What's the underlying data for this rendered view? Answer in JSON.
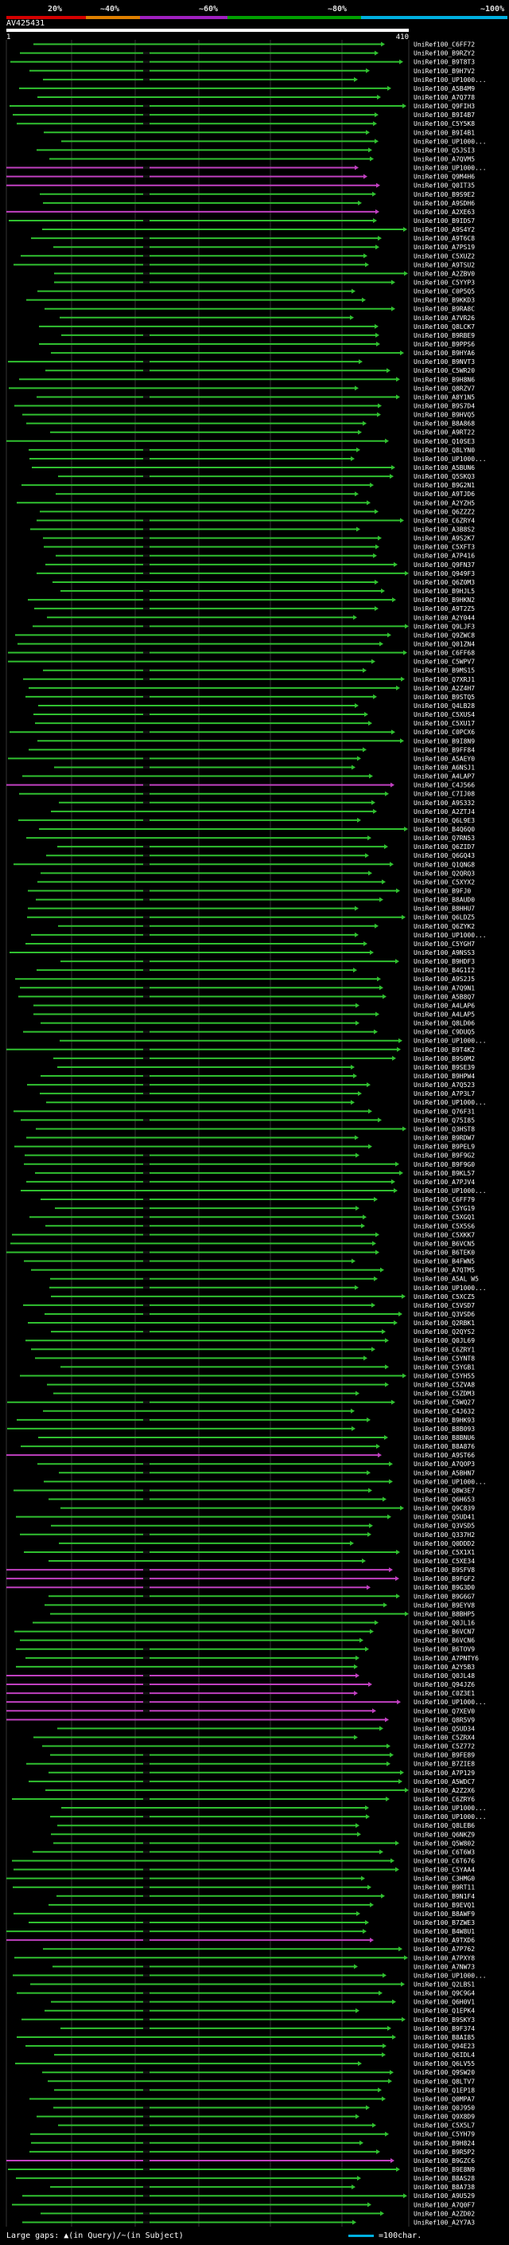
{
  "scale": {
    "labels": [
      "20%",
      "~40%",
      "~60%",
      "~80%",
      "~100%"
    ],
    "colors": [
      "#d40000",
      "#e08000",
      "#a020c0",
      "#00a000",
      "#00b0e0"
    ]
  },
  "query": {
    "id": "AV425431",
    "start": "1",
    "end": "410"
  },
  "hits": [
    "UniRef100_C6FF72",
    "UniRef100_B9RZY2",
    "UniRef100_B9T8T3",
    "UniRef100_B9H7V2",
    "UniRef100_UP1000...",
    "UniRef100_A5B4M9",
    "UniRef100_A7Q778",
    "UniRef100_Q9FIH3",
    "UniRef100_B9I4B7",
    "UniRef100_C5Y5K8",
    "UniRef100_B9I4B1",
    "UniRef100_UP1000...",
    "UniRef100_Q5JSI3",
    "UniRef100_A7QVM5",
    "UniRef100_UP1000...",
    "UniRef100_Q9M4H6",
    "UniRef100_Q0IT35",
    "UniRef100_B9S9E2",
    "UniRef100_A9SDH6",
    "UniRef100_A2XE63",
    "UniRef100_B9IDS7",
    "UniRef100_A9S4Y2",
    "UniRef100_A9T6C8",
    "UniRef100_A7PS19",
    "UniRef100_C5XUZ2",
    "UniRef100_A9TSU2",
    "UniRef100_A2ZBV0",
    "UniRef100_C5YYP3",
    "UniRef100_C0P5Q5",
    "UniRef100_B9KKD3",
    "UniRef100_B9RA8C",
    "UniRef100_A7VR26",
    "UniRef100_Q8LCK7",
    "UniRef100_B9RBE9",
    "UniRef100_B9PPS6",
    "UniRef100_B9HYA6",
    "UniRef100_B9NVT3",
    "UniRef100_C5WR20",
    "UniRef100_B9H8N6",
    "UniRef100_Q8RZV7",
    "UniRef100_A8Y1N5",
    "UniRef100_B9S7D4",
    "UniRef100_B9HVQ5",
    "UniRef100_B8A868",
    "UniRef100_A9RT22",
    "UniRef100_Q10SE3",
    "UniRef100_Q8LYN0",
    "UniRef100_UP1000...",
    "UniRef100_A5BUN6",
    "UniRef100_Q5SKQ3",
    "UniRef100_B9G2N1",
    "UniRef100_A9TJD6",
    "UniRef100_A2YZH5",
    "UniRef100_Q6ZZZ2",
    "UniRef100_C6ZRY4",
    "UniRef100_A3B8S2",
    "UniRef100_A9S2K7",
    "UniRef100_C5XFT3",
    "UniRef100_A7P416",
    "UniRef100_Q9FN37",
    "UniRef100_Q949F3",
    "UniRef100_Q6Z0M3",
    "UniRef100_B9HJL5",
    "UniRef100_B9HKN2",
    "UniRef100_A9T2Z5",
    "UniRef100_A2Y044",
    "UniRef100_Q9LJF3",
    "UniRef100_Q9ZWC8",
    "UniRef100_Q01ZN4",
    "UniRef100_C6FF68",
    "UniRef100_C5WPV7",
    "UniRef100_B9MS15",
    "UniRef100_Q7XRJ1",
    "UniRef100_A2Z4H7",
    "UniRef100_B9STQ5",
    "UniRef100_Q4LB28",
    "UniRef100_C5XUS4",
    "UniRef100_C5XU17",
    "UniRef100_C0PCX6",
    "UniRef100_B9I8N9",
    "UniRef100_B9FF84",
    "UniRef100_A5AEY0",
    "UniRef100_A6NSJ1",
    "UniRef100_A4LAP7",
    "UniRef100_C4J566",
    "UniRef100_C7IJ08",
    "UniRef100_A9S332",
    "UniRef100_A2ZTJ4",
    "UniRef100_Q6L9E3",
    "UniRef100_B4Q6Q0",
    "UniRef100_Q7RN53",
    "UniRef100_Q6ZID7",
    "UniRef100_Q6GQ43",
    "UniRef100_Q1QNG8",
    "UniRef100_Q2QRQ3",
    "UniRef100_C5XYX2",
    "UniRef100_B9FJ0",
    "UniRef100_B8AUD0",
    "UniRef100_B8HHU7",
    "UniRef100_Q6LDZ5",
    "UniRef100_Q6ZYK2",
    "UniRef100_UP1000...",
    "UniRef100_C5YGH7",
    "UniRef100_A9NSS3",
    "UniRef100_B9HDF3",
    "UniRef100_B4G1I2",
    "UniRef100_A9S2J5",
    "UniRef100_A7Q9N1",
    "UniRef100_A5B8Q7",
    "UniRef100_A4LAP6",
    "UniRef100_A4LAP5",
    "UniRef100_Q8LD06",
    "UniRef100_C9DUQ5",
    "UniRef100_UP1000...",
    "UniRef100_B9T4K2",
    "UniRef100_B9S0M2",
    "UniRef100_B9SE39",
    "UniRef100_B9HPW4",
    "UniRef100_A7Q523",
    "UniRef100_A7P3L7",
    "UniRef100_UP1000...",
    "UniRef100_Q76F31",
    "UniRef100_Q75I85",
    "UniRef100_Q3HST8",
    "UniRef100_B9RDW7",
    "UniRef100_B9PEL9",
    "UniRef100_B9F9G2",
    "UniRef100_B9F9G0",
    "UniRef100_B9KL57",
    "UniRef100_A7PJV4",
    "UniRef100_UP1000...",
    "UniRef100_C6FF79",
    "UniRef100_C5YG19",
    "UniRef100_C5XGQ1",
    "UniRef100_C5X5S6",
    "UniRef100_C5XKK7",
    "UniRef100_B6VCN5",
    "UniRef100_B6TEK0",
    "UniRef100_B4FWN5",
    "UniRef100_A7QTM5",
    "UniRef100_A5AL W5",
    "UniRef100_UP1000...",
    "UniRef100_C5XCZ5",
    "UniRef100_C5VSD7",
    "UniRef100_Q3VSD6",
    "UniRef100_Q2RBK1",
    "UniRef100_Q2QYS2",
    "UniRef100_Q0JL69",
    "UniRef100_C6ZRY1",
    "UniRef100_C5YNT8",
    "UniRef100_C5YGB1",
    "UniRef100_C5YH55",
    "UniRef100_C5ZVA8",
    "UniRef100_C5ZDM3",
    "UniRef100_C5WQ27",
    "UniRef100_C4J632",
    "UniRef100_B9HK93",
    "UniRef100_B8B093",
    "UniRef100_B8BNU6",
    "UniRef100_B8A876",
    "UniRef100_A9ST66",
    "UniRef100_A7QOP3",
    "UniRef100_A5BHN7",
    "UniRef100_UP1000...",
    "UniRef100_Q8W3E7",
    "UniRef100_Q6H653",
    "UniRef100_Q9C839",
    "UniRef100_Q5UD41",
    "UniRef100_Q3VSD5",
    "UniRef100_Q337H2",
    "UniRef100_Q0DDD2",
    "UniRef100_C5X1X1",
    "UniRef100_C5XE34",
    "UniRef100_B9SFV8",
    "UniRef100_B9FGF2",
    "UniRef100_B9G3D0",
    "UniRef100_B9G6G7",
    "UniRef100_B9EYV8",
    "UniRef100_B8BHP5",
    "UniRef100_Q0JL16",
    "UniRef100_B6VCN7",
    "UniRef100_B6VCN6",
    "UniRef100_B6TOV9",
    "UniRef100_A7PNTY6",
    "UniRef100_A2Y5B3",
    "UniRef100_Q0JL48",
    "UniRef100_Q94JZ6",
    "UniRef100_C0Z3E1",
    "UniRef100_UP1000...",
    "UniRef100_Q7XEV0",
    "UniRef100_Q8R5V9",
    "UniRef100_Q5UD34",
    "UniRef100_C5ZRX4",
    "UniRef100_C5Z772",
    "UniRef100_B9FE89",
    "UniRef100_B7ZIE8",
    "UniRef100_A7P129",
    "UniRef100_A5WDC7",
    "UniRef100_A2Z2X6",
    "UniRef100_C6ZRY6",
    "UniRef100_UP1000...",
    "UniRef100_UP1000...",
    "UniRef100_Q8LEB6",
    "UniRef100_Q6NKZ9",
    "UniRef100_Q5W802",
    "UniRef100_C6T6W3",
    "UniRef100_C6T676",
    "UniRef100_C5YAA4",
    "UniRef100_C3HMG0",
    "UniRef100_B9RT11",
    "UniRef100_B9N1F4",
    "UniRef100_B9EVQ1",
    "UniRef100_B8AWF9",
    "UniRef100_B7ZWE3",
    "UniRef100_B4W8U1",
    "UniRef100_A9TXD6",
    "UniRef100_A7P762",
    "UniRef100_A7PXY8",
    "UniRef100_A7NW73",
    "UniRef100_UP1000...",
    "UniRef100_Q2LBS1",
    "UniRef100_Q9C9G4",
    "UniRef100_Q6H0V1",
    "UniRef100_Q1EPK4",
    "UniRef100_B9SKY3",
    "UniRef100_B9F374",
    "UniRef100_B8AI85",
    "UniRef100_Q94E23",
    "UniRef100_Q6IDL4",
    "UniRef100_Q6LV55",
    "UniRef100_Q9SW20",
    "UniRef100_Q8LTV7",
    "UniRef100_Q1EP18",
    "UniRef100_Q0MPA7",
    "UniRef100_Q0J950",
    "UniRef100_Q9X8D9",
    "UniRef100_C5X5L7",
    "UniRef100_C5YH79",
    "UniRef100_B9H824",
    "UniRef100_B9R5P2",
    "UniRef100_B9GZC6",
    "UniRef100_B9E8N9",
    "UniRef100_B8AS28",
    "UniRef100_B8A738",
    "UniRef100_A9U529",
    "UniRef100_A7Q0F7",
    "UniRef100_A2ZD02",
    "UniRef100_A2Y7A3"
  ],
  "legend": {
    "gaps": "Large gaps: ▲(in Query)/~(in Subject)",
    "scale_label": "=100char."
  }
}
